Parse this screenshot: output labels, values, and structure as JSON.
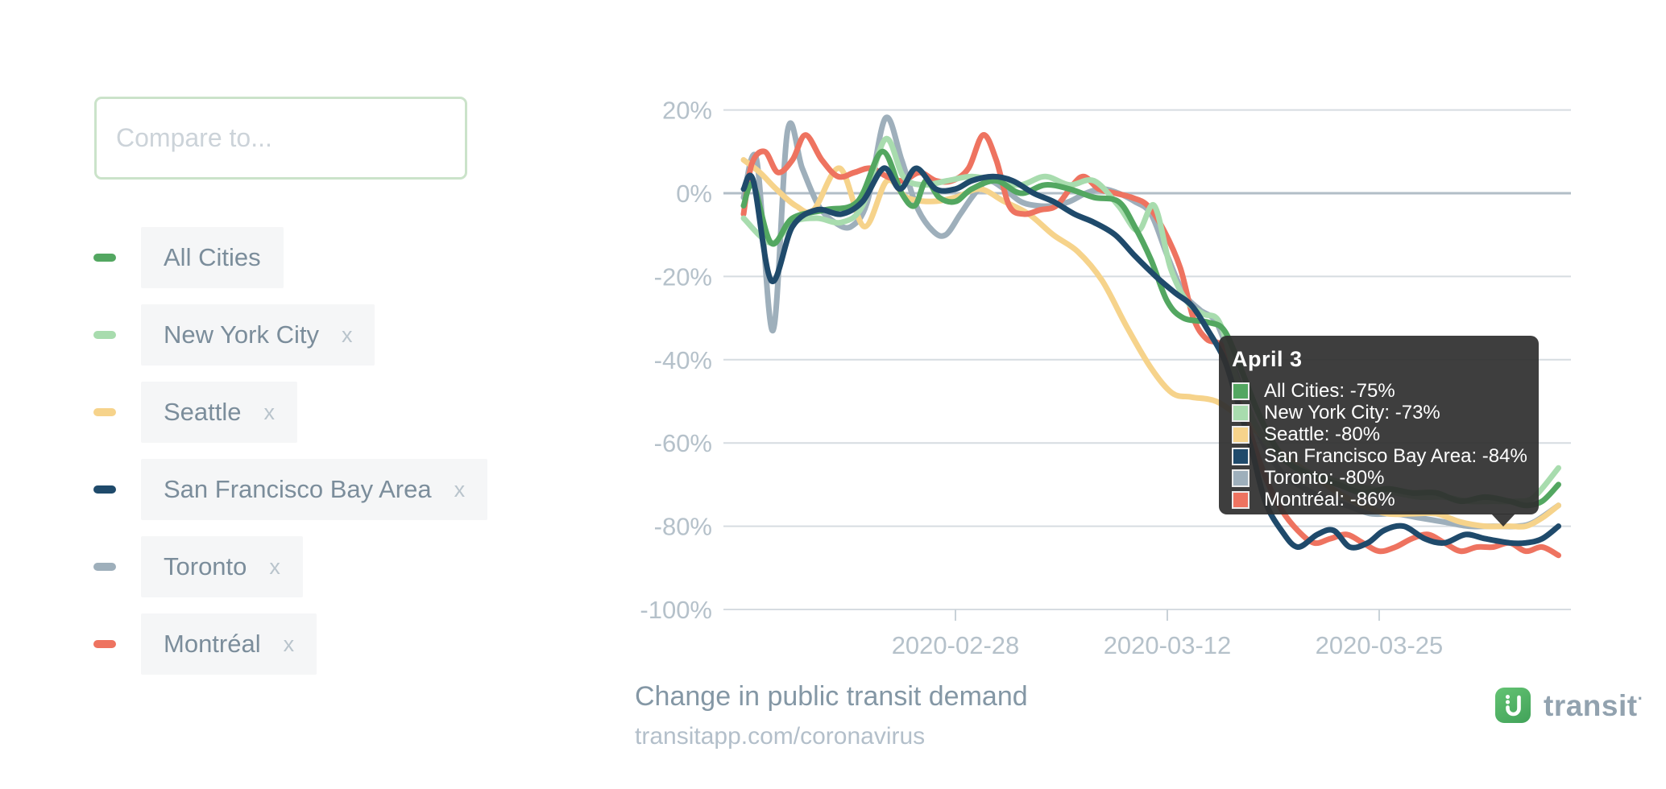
{
  "sidebar": {
    "compare_input": {
      "placeholder": "Compare to..."
    },
    "legend": [
      {
        "label": "All Cities",
        "color": "#53a761",
        "removable": false,
        "remove_label": "x"
      },
      {
        "label": "New York City",
        "color": "#a8dcae",
        "removable": true,
        "remove_label": "x"
      },
      {
        "label": "Seattle",
        "color": "#f6d38b",
        "removable": true,
        "remove_label": "x"
      },
      {
        "label": "San Francisco Bay Area",
        "color": "#1f4a6b",
        "removable": true,
        "remove_label": "x"
      },
      {
        "label": "Toronto",
        "color": "#9eafbb",
        "removable": true,
        "remove_label": "x"
      },
      {
        "label": "Montréal",
        "color": "#ee7360",
        "removable": true,
        "remove_label": "x"
      }
    ]
  },
  "tooltip": {
    "title": "April 3",
    "rows": [
      {
        "label": "All Cities",
        "value": "-75%",
        "color": "#53a761"
      },
      {
        "label": "New York City",
        "value": "-73%",
        "color": "#a8dcae"
      },
      {
        "label": "Seattle",
        "value": "-80%",
        "color": "#f6d38b"
      },
      {
        "label": "San Francisco Bay Area",
        "value": "-84%",
        "color": "#1f4a6b"
      },
      {
        "label": "Toronto",
        "value": "-80%",
        "color": "#9eafbb"
      },
      {
        "label": "Montréal",
        "value": "-86%",
        "color": "#ee7360"
      }
    ]
  },
  "footer": {
    "title": "Change in public transit demand",
    "url": "transitapp.com/coronavirus",
    "brand": "transit",
    "brand_tm": "·"
  },
  "colors": {
    "grid": "#d6dce1",
    "zero_line": "#b2bec7",
    "axis_text": "#b5c1ca",
    "tick": "#c9d2d8"
  },
  "chart_data": {
    "type": "line",
    "title": "Change in public transit demand",
    "subtitle": "transitapp.com/coronavirus",
    "grid": true,
    "legend_position": "left",
    "x_axis": {
      "unit": "date",
      "start_date": "2020-02-15",
      "end_date": "2020-04-05",
      "ticks": [
        {
          "label": "2020-02-28",
          "day": 13
        },
        {
          "label": "2020-03-12",
          "day": 26
        },
        {
          "label": "2020-03-25",
          "day": 39
        }
      ]
    },
    "y_axis": {
      "unit": "percent change vs normal",
      "min": -100,
      "max": 20,
      "ticks": [
        {
          "value": 20,
          "label": "20%"
        },
        {
          "value": 0,
          "label": "0%"
        },
        {
          "value": -20,
          "label": "-20%"
        },
        {
          "value": -40,
          "label": "-40%"
        },
        {
          "value": -60,
          "label": "-60%"
        },
        {
          "value": -80,
          "label": "-80%"
        },
        {
          "value": -100,
          "label": "-100%"
        }
      ]
    },
    "hover": {
      "date_label": "April 3",
      "day": 48,
      "values": {
        "All Cities": -75,
        "New York City": -73,
        "Seattle": -80,
        "San Francisco Bay Area": -84,
        "Toronto": -80,
        "Montréal": -86
      }
    },
    "series": [
      {
        "name": "Toronto",
        "color": "#9eafbb",
        "points": [
          [
            0,
            -1
          ],
          [
            0.8,
            8
          ],
          [
            1.8,
            -33
          ],
          [
            2.7,
            15
          ],
          [
            3.6,
            6
          ],
          [
            4.6,
            -3
          ],
          [
            5.6,
            -7
          ],
          [
            6.6,
            -8
          ],
          [
            7.6,
            -2
          ],
          [
            8.7,
            18
          ],
          [
            9.7,
            8
          ],
          [
            10.6,
            -3
          ],
          [
            11.6,
            -9
          ],
          [
            12.4,
            -10
          ],
          [
            13.3,
            -5
          ],
          [
            14.2,
            0
          ],
          [
            15,
            3
          ],
          [
            16,
            1
          ],
          [
            17,
            -2
          ],
          [
            18,
            -3
          ],
          [
            19,
            -3
          ],
          [
            20,
            -2
          ],
          [
            21,
            0
          ],
          [
            22,
            1
          ],
          [
            23,
            0
          ],
          [
            24,
            -2
          ],
          [
            25,
            -5
          ],
          [
            26,
            -15
          ],
          [
            27,
            -24
          ],
          [
            28,
            -28
          ],
          [
            29,
            -31
          ],
          [
            30,
            -41
          ],
          [
            31,
            -52
          ],
          [
            32,
            -61
          ],
          [
            33,
            -67
          ],
          [
            34,
            -70
          ],
          [
            35.5,
            -73
          ],
          [
            37,
            -75
          ],
          [
            38.5,
            -77
          ],
          [
            40,
            -77
          ],
          [
            41.5,
            -78
          ],
          [
            43,
            -79
          ],
          [
            44.5,
            -80
          ],
          [
            46,
            -80
          ],
          [
            47.5,
            -80
          ],
          [
            48.5,
            -79
          ],
          [
            50,
            -75
          ]
        ]
      },
      {
        "name": "Seattle",
        "color": "#f6d38b",
        "points": [
          [
            0,
            8
          ],
          [
            1,
            5
          ],
          [
            2,
            1
          ],
          [
            3.2,
            -3
          ],
          [
            4.3,
            -4
          ],
          [
            5.9,
            6
          ],
          [
            7.4,
            -8
          ],
          [
            8.8,
            3
          ],
          [
            10,
            -1
          ],
          [
            11.5,
            -2
          ],
          [
            13,
            -1
          ],
          [
            14.5,
            1
          ],
          [
            16,
            -2
          ],
          [
            17.5,
            -5
          ],
          [
            19,
            -10
          ],
          [
            20.5,
            -14
          ],
          [
            22,
            -21
          ],
          [
            23.5,
            -32
          ],
          [
            25,
            -42
          ],
          [
            26.3,
            -48
          ],
          [
            27.5,
            -49
          ],
          [
            29,
            -50
          ],
          [
            30.5,
            -54
          ],
          [
            32,
            -59
          ],
          [
            33.5,
            -64
          ],
          [
            35,
            -68
          ],
          [
            36.5,
            -72
          ],
          [
            38,
            -75
          ],
          [
            39.5,
            -77
          ],
          [
            41,
            -77
          ],
          [
            42.5,
            -77
          ],
          [
            44,
            -79
          ],
          [
            45.5,
            -80
          ],
          [
            47,
            -80
          ],
          [
            48,
            -80
          ],
          [
            49,
            -78
          ],
          [
            50,
            -75
          ]
        ]
      },
      {
        "name": "Montréal",
        "color": "#ee7360",
        "points": [
          [
            0,
            -5
          ],
          [
            0.5,
            7
          ],
          [
            1.3,
            10
          ],
          [
            2.1,
            5
          ],
          [
            3,
            8
          ],
          [
            3.8,
            14
          ],
          [
            4.8,
            8
          ],
          [
            5.8,
            4
          ],
          [
            6.8,
            5
          ],
          [
            7.8,
            6
          ],
          [
            8.8,
            4
          ],
          [
            9.8,
            3
          ],
          [
            10.8,
            5
          ],
          [
            11.8,
            3
          ],
          [
            12.8,
            3
          ],
          [
            13.8,
            6
          ],
          [
            14.7,
            14
          ],
          [
            15.5,
            8
          ],
          [
            16.3,
            -3
          ],
          [
            17.2,
            -5
          ],
          [
            18.2,
            -4
          ],
          [
            19.2,
            -3
          ],
          [
            20.2,
            2
          ],
          [
            20.9,
            4
          ],
          [
            21.8,
            1
          ],
          [
            22.8,
            0
          ],
          [
            23.8,
            -1
          ],
          [
            24.8,
            -3
          ],
          [
            25.8,
            -9
          ],
          [
            26.8,
            -18
          ],
          [
            27.6,
            -30
          ],
          [
            28.4,
            -35
          ],
          [
            29.4,
            -37
          ],
          [
            30.3,
            -47
          ],
          [
            31.2,
            -59
          ],
          [
            32.1,
            -69
          ],
          [
            33,
            -76
          ],
          [
            34,
            -81
          ],
          [
            35,
            -84
          ],
          [
            36,
            -83
          ],
          [
            37,
            -82
          ],
          [
            38,
            -84
          ],
          [
            39,
            -86
          ],
          [
            40,
            -85
          ],
          [
            41,
            -83
          ],
          [
            42,
            -82
          ],
          [
            43,
            -84
          ],
          [
            44,
            -86
          ],
          [
            45,
            -85
          ],
          [
            46,
            -85
          ],
          [
            47,
            -84
          ],
          [
            48,
            -86
          ],
          [
            49,
            -85
          ],
          [
            50,
            -87
          ]
        ]
      },
      {
        "name": "New York City",
        "color": "#a8dcae",
        "points": [
          [
            0,
            -6
          ],
          [
            1.7,
            -12
          ],
          [
            3,
            -7
          ],
          [
            4.5,
            -6
          ],
          [
            6,
            -7
          ],
          [
            7.3,
            -3
          ],
          [
            8.7,
            13
          ],
          [
            9.8,
            4
          ],
          [
            11,
            2
          ],
          [
            12.5,
            3
          ],
          [
            14,
            4
          ],
          [
            15.5,
            3
          ],
          [
            17,
            2
          ],
          [
            18.5,
            4
          ],
          [
            20,
            2
          ],
          [
            21.5,
            3
          ],
          [
            23,
            -3
          ],
          [
            24.2,
            -9
          ],
          [
            25.2,
            -3
          ],
          [
            26.2,
            -18
          ],
          [
            27.2,
            -26
          ],
          [
            28.2,
            -29
          ],
          [
            29.2,
            -31
          ],
          [
            30.2,
            -44
          ],
          [
            31.2,
            -54
          ],
          [
            32.5,
            -62
          ],
          [
            34,
            -66
          ],
          [
            35.5,
            -68
          ],
          [
            37,
            -70
          ],
          [
            38.5,
            -71
          ],
          [
            40,
            -72
          ],
          [
            41.5,
            -73
          ],
          [
            43,
            -73
          ],
          [
            44.5,
            -74
          ],
          [
            46,
            -74
          ],
          [
            47.5,
            -74
          ],
          [
            48.5,
            -73
          ],
          [
            50,
            -66
          ]
        ]
      },
      {
        "name": "All Cities",
        "color": "#53a761",
        "points": [
          [
            0,
            -3
          ],
          [
            0.6,
            2
          ],
          [
            1.7,
            -12
          ],
          [
            3,
            -6
          ],
          [
            5,
            -4
          ],
          [
            7,
            -2
          ],
          [
            8.5,
            10
          ],
          [
            9.7,
            0
          ],
          [
            10.5,
            -3
          ],
          [
            11.2,
            3
          ],
          [
            12,
            -1
          ],
          [
            13,
            -2
          ],
          [
            14,
            1
          ],
          [
            15.5,
            3
          ],
          [
            17,
            0
          ],
          [
            18.5,
            2
          ],
          [
            20,
            1
          ],
          [
            21.5,
            -1
          ],
          [
            23,
            -2
          ],
          [
            24,
            -8
          ],
          [
            25,
            -16
          ],
          [
            26,
            -26
          ],
          [
            27,
            -30
          ],
          [
            28.5,
            -31
          ],
          [
            29.5,
            -33
          ],
          [
            30.5,
            -42
          ],
          [
            31.5,
            -52
          ],
          [
            32.5,
            -60
          ],
          [
            33.5,
            -65
          ],
          [
            35,
            -68
          ],
          [
            36.5,
            -70
          ],
          [
            38,
            -72
          ],
          [
            39.5,
            -71
          ],
          [
            41,
            -72
          ],
          [
            42.5,
            -72
          ],
          [
            44,
            -74
          ],
          [
            45.5,
            -73
          ],
          [
            47,
            -74
          ],
          [
            48,
            -75
          ],
          [
            49,
            -74
          ],
          [
            50,
            -70
          ]
        ]
      },
      {
        "name": "San Francisco Bay Area",
        "color": "#1f4a6b",
        "points": [
          [
            0,
            1
          ],
          [
            0.6,
            3
          ],
          [
            1.7,
            -21
          ],
          [
            3,
            -8
          ],
          [
            4.5,
            -4
          ],
          [
            6,
            -5
          ],
          [
            7.3,
            -2
          ],
          [
            8.6,
            6
          ],
          [
            9.6,
            1
          ],
          [
            10.6,
            6
          ],
          [
            11.8,
            1
          ],
          [
            13,
            1
          ],
          [
            14,
            3
          ],
          [
            15.3,
            4
          ],
          [
            16.5,
            3
          ],
          [
            17.8,
            0
          ],
          [
            19,
            -2
          ],
          [
            20.3,
            -5
          ],
          [
            21.5,
            -7
          ],
          [
            22.8,
            -10
          ],
          [
            24,
            -15
          ],
          [
            25.3,
            -20
          ],
          [
            26.5,
            -24
          ],
          [
            27.5,
            -27
          ],
          [
            28.5,
            -33
          ],
          [
            29.5,
            -40
          ],
          [
            30.3,
            -50
          ],
          [
            31.2,
            -62
          ],
          [
            32,
            -74
          ],
          [
            33,
            -81
          ],
          [
            34,
            -85
          ],
          [
            35.2,
            -82
          ],
          [
            36.2,
            -81
          ],
          [
            37.2,
            -85
          ],
          [
            38.3,
            -84
          ],
          [
            39.3,
            -81
          ],
          [
            40.5,
            -80
          ],
          [
            41.8,
            -83
          ],
          [
            43,
            -84
          ],
          [
            44.3,
            -82
          ],
          [
            45.5,
            -83
          ],
          [
            47,
            -84
          ],
          [
            48,
            -84
          ],
          [
            49,
            -83
          ],
          [
            50,
            -80
          ]
        ]
      }
    ]
  }
}
